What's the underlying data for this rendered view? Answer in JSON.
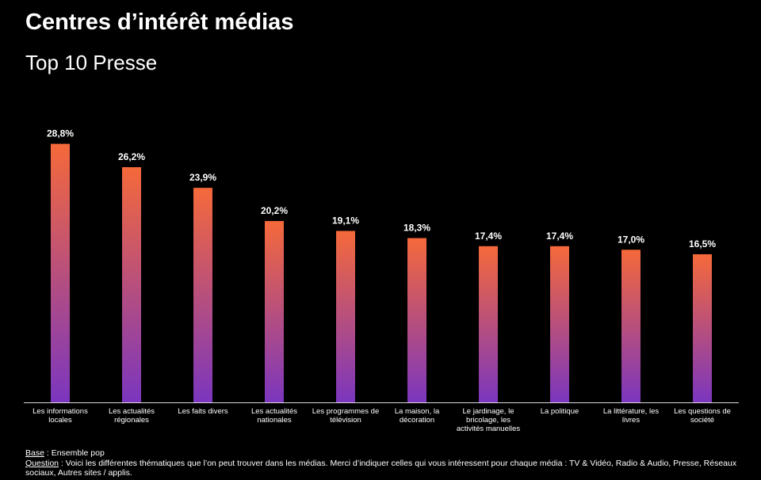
{
  "chart_data": {
    "type": "bar",
    "title": "Centres d’intérêt médias",
    "subtitle": "Top 10 Presse",
    "categories": [
      "Les informations locales",
      "Les actualités régionales",
      "Les faits divers",
      "Les actualités nationales",
      "Les programmes de télévision",
      "La maison, la décoration",
      "Le jardinage, le bricolage, les activités manuelles",
      "La politique",
      "La littérature, les livres",
      "Les questions de société"
    ],
    "values": [
      28.8,
      26.2,
      23.9,
      20.2,
      19.1,
      18.3,
      17.4,
      17.4,
      17.0,
      16.5
    ],
    "value_labels": [
      "28,8%",
      "26,2%",
      "23,9%",
      "20,2%",
      "19,1%",
      "18,3%",
      "17,4%",
      "17,4%",
      "17,0%",
      "16,5%"
    ],
    "color_top": "#f5693a",
    "color_bottom": "#7b36bf",
    "ylim": [
      0,
      30
    ],
    "footnotes": [
      {
        "label": "Base",
        "text": " : Ensemble pop"
      },
      {
        "label": "Question",
        "text": " : Voici les différentes thématiques que l’on peut trouver dans les médias. Merci d’indiquer celles qui vous intéressent pour chaque média : TV & Vidéo, Radio & Audio, Presse, Réseaux sociaux, Autres sites / applis."
      }
    ]
  }
}
